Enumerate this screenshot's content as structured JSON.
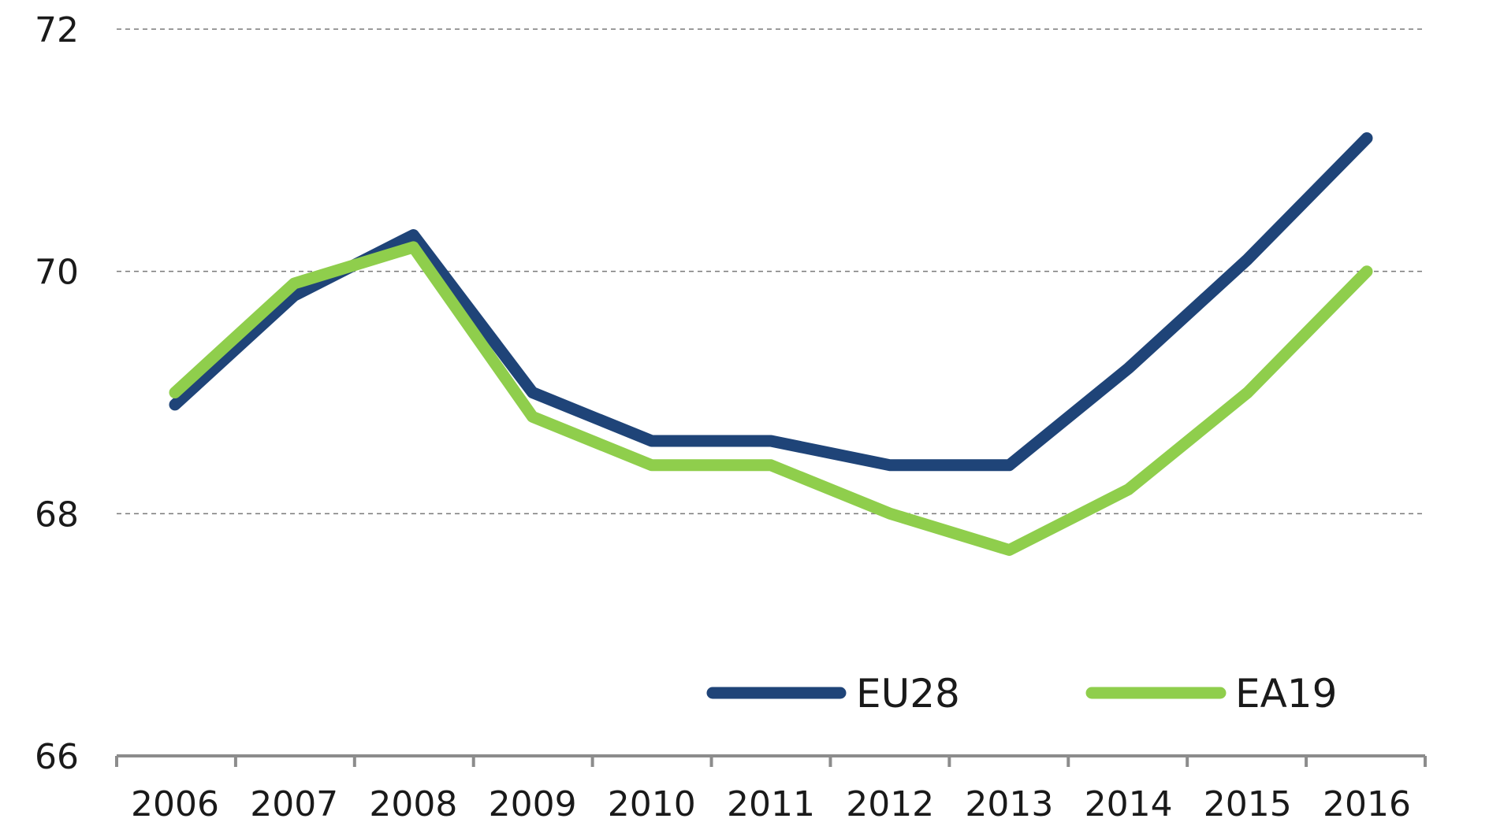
{
  "chart_data": {
    "type": "line",
    "title": "",
    "xlabel": "",
    "ylabel": "",
    "categories": [
      "2006",
      "2007",
      "2008",
      "2009",
      "2010",
      "2011",
      "2012",
      "2013",
      "2014",
      "2015",
      "2016"
    ],
    "ylim": [
      66,
      72
    ],
    "yticks": [
      66,
      68,
      70,
      72
    ],
    "grid": true,
    "legend_position": "bottom-right",
    "series": [
      {
        "name": "EU28",
        "color": "#1f4478",
        "values": [
          68.9,
          69.8,
          70.3,
          69.0,
          68.6,
          68.6,
          68.4,
          68.4,
          69.2,
          70.1,
          71.1
        ]
      },
      {
        "name": "EA19",
        "color": "#8fce4c",
        "values": [
          69.0,
          69.9,
          70.2,
          68.8,
          68.4,
          68.4,
          68.0,
          67.7,
          68.2,
          69.0,
          70.0
        ]
      }
    ]
  }
}
